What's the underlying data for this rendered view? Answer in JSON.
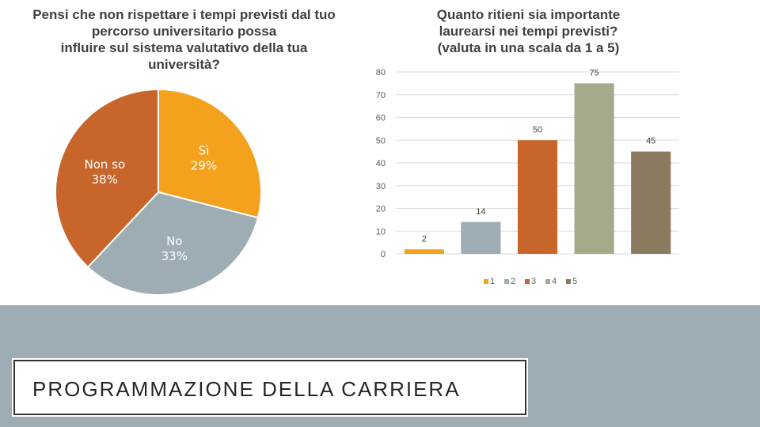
{
  "slide": {
    "section_title": "PROGRAMMAZIONE DELLA CARRIERA"
  },
  "chart_data": [
    {
      "type": "pie",
      "title": "Pensi che non rispettare i tempi previsti dal tuo\npercorso universitario possa\ninfluire sul sistema valutativo della tua\nuniversità?",
      "categories": [
        "Sì",
        "No",
        "Non so"
      ],
      "values": [
        29,
        33,
        38
      ],
      "labels": [
        "29%",
        "33%",
        "38%"
      ],
      "colors": [
        "#f4a11d",
        "#9eadb3",
        "#c8652b"
      ]
    },
    {
      "type": "bar",
      "title": "Quanto ritieni sia importante\nlaurearsi nei tempi previsti?\n(valuta in una scala da 1 a 5)",
      "categories": [
        "1",
        "2",
        "3",
        "4",
        "5"
      ],
      "values": [
        2,
        14,
        50,
        75,
        45
      ],
      "colors": [
        "#f4a11d",
        "#9eadb3",
        "#c8652b",
        "#a6a98a",
        "#8a7a5e"
      ],
      "ylim": [
        0,
        80
      ],
      "yticks": [
        "0",
        "10",
        "20",
        "30",
        "40",
        "50",
        "60",
        "70",
        "80"
      ],
      "grid": true,
      "legend_position": "bottom"
    }
  ]
}
